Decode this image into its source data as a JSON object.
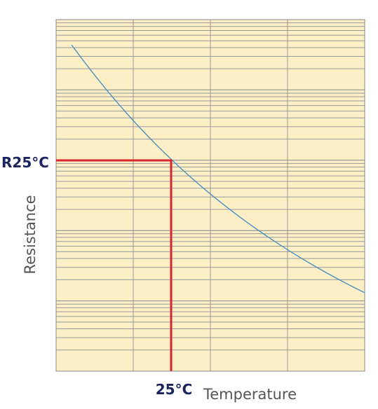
{
  "axes": {
    "y_label": "Resistance",
    "x_label": "Temperature"
  },
  "markers": {
    "reference_resistance": "R25°C",
    "reference_temperature": "25°C"
  }
}
